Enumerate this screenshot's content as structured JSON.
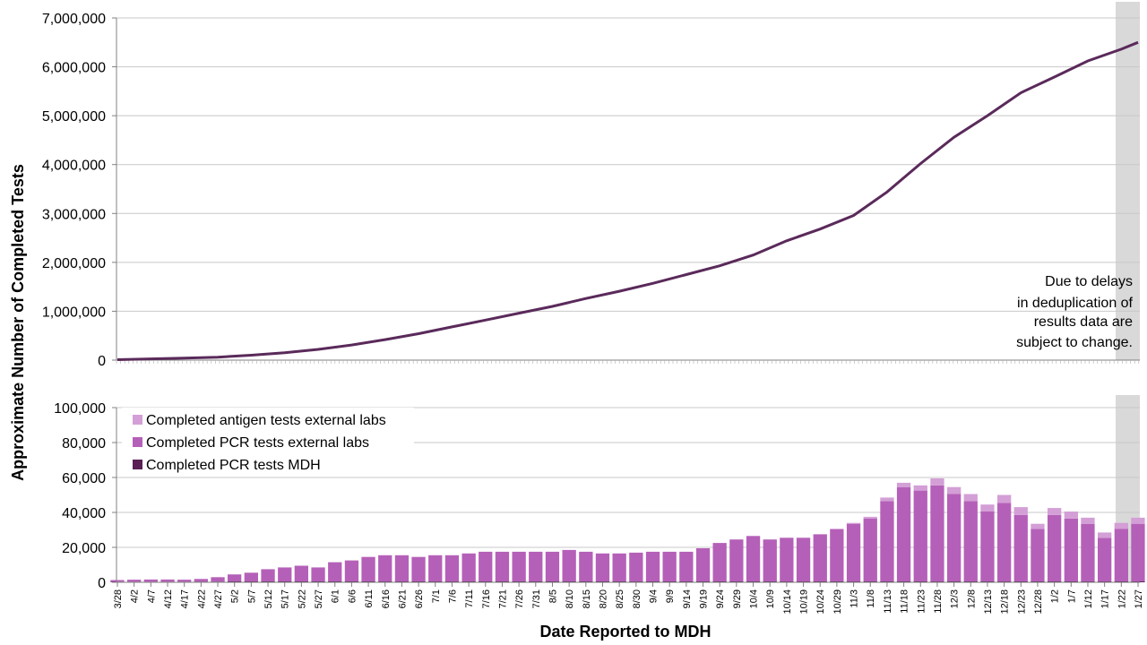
{
  "chart_data": [
    {
      "type": "line",
      "ylabel": "Approximate Number of Completed Tests",
      "ylim": [
        0,
        7000000
      ],
      "y_ticks": [
        "0",
        "1,000,000",
        "2,000,000",
        "3,000,000",
        "4,000,000",
        "5,000,000",
        "6,000,000",
        "7,000,000"
      ],
      "grid": "horizontal",
      "colors": {
        "line": "#5a2a5a",
        "shaded": "#d9d9d9",
        "grid": "#c8c8c8"
      },
      "annotation": [
        "Due to delays",
        "in deduplication of",
        "results data are",
        "subject to change."
      ],
      "shaded_dates": [
        "1/21",
        "1/27"
      ],
      "series": [
        {
          "x": [
            "3/28",
            "4/7",
            "4/17",
            "4/27",
            "5/7",
            "5/17",
            "5/27",
            "6/6",
            "6/16",
            "6/26",
            "7/6",
            "7/16",
            "7/26",
            "8/5",
            "8/15",
            "8/25",
            "9/4",
            "9/14",
            "9/24",
            "10/4",
            "10/14",
            "10/24",
            "11/3",
            "11/13",
            "11/23",
            "12/3",
            "12/13",
            "12/23",
            "1/2",
            "1/12",
            "1/22",
            "1/27"
          ],
          "values": [
            10000,
            25000,
            40000,
            60000,
            100000,
            150000,
            220000,
            310000,
            420000,
            540000,
            680000,
            820000,
            960000,
            1100000,
            1260000,
            1410000,
            1570000,
            1750000,
            1930000,
            2150000,
            2440000,
            2680000,
            2960000,
            3440000,
            4020000,
            4560000,
            5000000,
            5470000,
            5790000,
            6120000,
            6360000,
            6500000
          ]
        }
      ]
    },
    {
      "type": "bar",
      "stacked": true,
      "xlabel": "Date Reported to MDH",
      "ylim": [
        0,
        100000
      ],
      "y_ticks": [
        "0",
        "20,000",
        "40,000",
        "60,000",
        "80,000",
        "100,000"
      ],
      "grid": "horizontal",
      "legend_position": "top-left",
      "shaded_dates": [
        "1/21",
        "1/27"
      ],
      "categories": [
        "3/28",
        "4/2",
        "4/7",
        "4/12",
        "4/17",
        "4/22",
        "4/27",
        "5/2",
        "5/7",
        "5/12",
        "5/17",
        "5/22",
        "5/27",
        "6/1",
        "6/6",
        "6/11",
        "6/16",
        "6/21",
        "6/26",
        "7/1",
        "7/6",
        "7/11",
        "7/16",
        "7/21",
        "7/26",
        "7/31",
        "8/5",
        "8/10",
        "8/15",
        "8/20",
        "8/25",
        "8/30",
        "9/4",
        "9/9",
        "9/14",
        "9/19",
        "9/24",
        "9/29",
        "10/4",
        "10/9",
        "10/14",
        "10/19",
        "10/24",
        "10/29",
        "11/3",
        "11/8",
        "11/13",
        "11/18",
        "11/23",
        "11/28",
        "12/3",
        "12/8",
        "12/13",
        "12/18",
        "12/23",
        "12/28",
        "1/2",
        "1/7",
        "1/12",
        "1/17",
        "1/22",
        "1/27"
      ],
      "series": [
        {
          "name": "Completed antigen tests external labs",
          "color": "#d39fd6",
          "values": [
            0,
            0,
            0,
            0,
            0,
            0,
            0,
            0,
            0,
            0,
            0,
            0,
            0,
            0,
            0,
            0,
            0,
            0,
            0,
            0,
            0,
            0,
            0,
            0,
            0,
            0,
            0,
            0,
            0,
            0,
            0,
            0,
            0,
            0,
            0,
            0,
            0,
            0,
            0,
            0,
            0,
            0,
            0,
            0,
            500,
            1000,
            2000,
            2500,
            3000,
            4000,
            4000,
            4000,
            4000,
            4500,
            4500,
            3000,
            4000,
            4000,
            3500,
            3000,
            3500,
            3500
          ]
        },
        {
          "name": "Completed PCR tests external labs",
          "color": "#b560b8",
          "values": [
            1000,
            1200,
            1300,
            1300,
            1200,
            1500,
            2500,
            4000,
            5000,
            7000,
            8000,
            9000,
            8000,
            11000,
            12000,
            14000,
            15000,
            15000,
            14000,
            15000,
            15000,
            16000,
            17000,
            17000,
            17000,
            17000,
            17000,
            18000,
            17000,
            16000,
            16000,
            16500,
            17000,
            17000,
            17000,
            19000,
            22000,
            24000,
            26000,
            24000,
            25000,
            25000,
            27000,
            30000,
            33000,
            36000,
            46000,
            54000,
            52000,
            55000,
            50000,
            46000,
            40000,
            45000,
            38000,
            30000,
            38000,
            36000,
            33000,
            25000,
            30000,
            33000
          ]
        },
        {
          "name": "Completed PCR tests MDH",
          "color": "#5a1f55",
          "values": [
            300,
            300,
            300,
            300,
            300,
            400,
            400,
            500,
            500,
            500,
            500,
            500,
            500,
            500,
            500,
            500,
            500,
            500,
            500,
            500,
            500,
            500,
            500,
            500,
            500,
            500,
            500,
            500,
            500,
            500,
            500,
            500,
            500,
            500,
            500,
            500,
            500,
            500,
            500,
            500,
            500,
            500,
            500,
            500,
            500,
            500,
            500,
            500,
            500,
            500,
            500,
            500,
            500,
            500,
            500,
            500,
            500,
            500,
            500,
            500,
            500,
            500
          ]
        }
      ]
    }
  ]
}
